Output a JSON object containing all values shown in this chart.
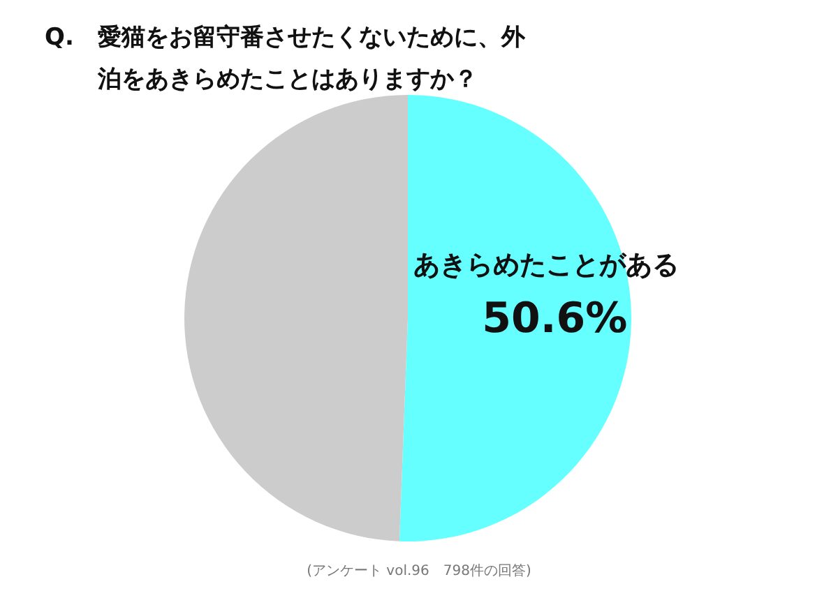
{
  "chart_data": {
    "type": "pie",
    "title": "Q.　愛猫をお留守番させたくないために、外泊をあきらめたことはありますか？",
    "categories": [
      "あきらめたことがある",
      null
    ],
    "values": [
      50.6,
      49.4
    ],
    "colors": [
      "#66ffff",
      "#cccccc"
    ],
    "value_labels": [
      "50.6%",
      null
    ],
    "annotations": [
      "(アンケート vol.96　798件の回答)"
    ]
  }
}
